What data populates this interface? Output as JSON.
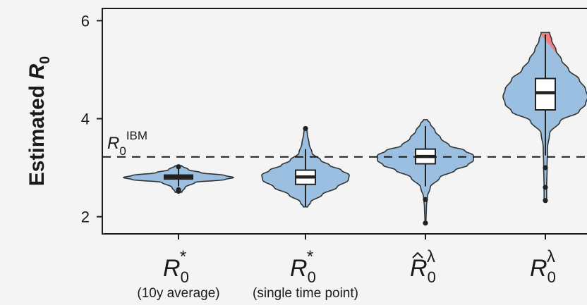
{
  "chart_data": {
    "type": "violin",
    "ylabel": "Estimated R0",
    "ylabel_main": "Estimated ",
    "ylabel_italic": "R",
    "ylabel_sub": "0",
    "ylim": [
      1.65,
      6.25
    ],
    "yticks": [
      2,
      4,
      6
    ],
    "ytick_labels": [
      "2",
      "4",
      "6"
    ],
    "reference_line": {
      "y": 3.22,
      "label_main": "R",
      "label_sub": "0",
      "label_sup": "IBM",
      "style": "dashed"
    },
    "fill_color": "#9bbfe0",
    "alt_fill_color": "#f08080",
    "grid": false,
    "categories": [
      {
        "label_main": "R",
        "label_sub": "0",
        "label_sup": "*",
        "hat": false,
        "sublabel": "(10y average)",
        "box": {
          "q1": 2.77,
          "median": 2.81,
          "q3": 2.85,
          "whisker_low": 2.62,
          "whisker_high": 2.99
        },
        "outliers": [
          2.52,
          2.55,
          3.02
        ],
        "density": [
          [
            2.5,
            0.06
          ],
          [
            2.6,
            0.12
          ],
          [
            2.7,
            0.3
          ],
          [
            2.76,
            0.85
          ],
          [
            2.8,
            1.0
          ],
          [
            2.84,
            0.85
          ],
          [
            2.9,
            0.4
          ],
          [
            2.96,
            0.18
          ],
          [
            3.04,
            0.06
          ]
        ],
        "halfwidth": 78
      },
      {
        "label_main": "R",
        "label_sub": "0",
        "label_sup": "*",
        "hat": false,
        "sublabel": "(single time point)",
        "box": {
          "q1": 2.66,
          "median": 2.81,
          "q3": 2.95,
          "whisker_low": 2.2,
          "whisker_high": 3.38
        },
        "outliers": [
          3.8
        ],
        "density": [
          [
            2.2,
            0.05
          ],
          [
            2.3,
            0.12
          ],
          [
            2.45,
            0.38
          ],
          [
            2.6,
            0.72
          ],
          [
            2.75,
            0.98
          ],
          [
            2.85,
            1.0
          ],
          [
            2.95,
            0.82
          ],
          [
            3.05,
            0.55
          ],
          [
            3.15,
            0.35
          ],
          [
            3.3,
            0.15
          ],
          [
            3.5,
            0.08
          ],
          [
            3.7,
            0.04
          ],
          [
            3.82,
            0.02
          ]
        ],
        "halfwidth": 62
      },
      {
        "label_main": "R",
        "label_sub": "0",
        "label_sup": "λ",
        "hat": true,
        "sublabel": "",
        "box": {
          "q1": 3.08,
          "median": 3.23,
          "q3": 3.38,
          "whisker_low": 2.62,
          "whisker_high": 3.85
        },
        "outliers": [
          2.35,
          1.87
        ],
        "density": [
          [
            1.88,
            0.01
          ],
          [
            2.2,
            0.02
          ],
          [
            2.4,
            0.04
          ],
          [
            2.6,
            0.1
          ],
          [
            2.8,
            0.3
          ],
          [
            2.95,
            0.62
          ],
          [
            3.05,
            0.88
          ],
          [
            3.15,
            1.0
          ],
          [
            3.25,
            1.0
          ],
          [
            3.35,
            0.82
          ],
          [
            3.45,
            0.5
          ],
          [
            3.6,
            0.32
          ],
          [
            3.75,
            0.2
          ],
          [
            3.9,
            0.1
          ],
          [
            3.98,
            0.04
          ]
        ],
        "halfwidth": 68
      },
      {
        "label_main": "R",
        "label_sub": "0",
        "label_sup": "λ",
        "hat": false,
        "sublabel": "",
        "box": {
          "q1": 4.18,
          "median": 4.53,
          "q3": 4.82,
          "whisker_low": 3.25,
          "whisker_high": 5.72
        },
        "outliers": [
          2.33,
          2.6,
          3.0
        ],
        "density": [
          [
            2.32,
            0.03
          ],
          [
            2.6,
            0.03
          ],
          [
            3.0,
            0.04
          ],
          [
            3.4,
            0.05
          ],
          [
            3.7,
            0.1
          ],
          [
            3.95,
            0.35
          ],
          [
            4.15,
            0.8
          ],
          [
            4.3,
            0.95
          ],
          [
            4.45,
            1.0
          ],
          [
            4.6,
            0.95
          ],
          [
            4.8,
            0.8
          ],
          [
            5.0,
            0.55
          ],
          [
            5.2,
            0.38
          ],
          [
            5.4,
            0.25
          ],
          [
            5.6,
            0.15
          ],
          [
            5.76,
            0.1
          ]
        ],
        "halfwidth": 60,
        "split_color": true
      }
    ]
  }
}
